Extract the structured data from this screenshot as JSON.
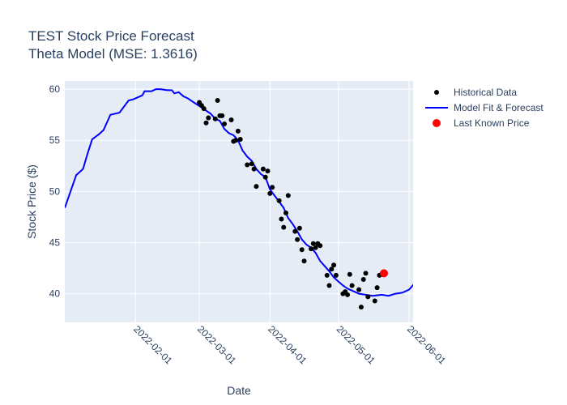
{
  "chart_data": {
    "type": "scatter",
    "title": "TEST Stock Price Forecast",
    "subtitle": "Theta Model (MSE: 1.3616)",
    "xlabel": "Date",
    "ylabel": "Stock Price ($)",
    "xlim": [
      "2022-01-01",
      "2022-06-01"
    ],
    "ylim": [
      37.2,
      60.8
    ],
    "y_ticks": [
      40,
      45,
      50,
      55,
      60
    ],
    "x_ticks": [
      "2022-02-01",
      "2022-03-01",
      "2022-04-01",
      "2022-05-01",
      "2022-06-01"
    ],
    "grid": true,
    "legend_position": "top-right",
    "series": [
      {
        "name": "Historical Data",
        "mode": "markers",
        "color": "#000000",
        "points": [
          [
            "2022-03-01",
            58.7
          ],
          [
            "2022-03-02",
            58.4
          ],
          [
            "2022-03-03",
            58.1
          ],
          [
            "2022-03-04",
            56.7
          ],
          [
            "2022-03-05",
            57.2
          ],
          [
            "2022-03-08",
            57.1
          ],
          [
            "2022-03-09",
            58.9
          ],
          [
            "2022-03-10",
            57.4
          ],
          [
            "2022-03-11",
            57.4
          ],
          [
            "2022-03-12",
            56.6
          ],
          [
            "2022-03-15",
            57.0
          ],
          [
            "2022-03-16",
            54.9
          ],
          [
            "2022-03-17",
            55.0
          ],
          [
            "2022-03-18",
            55.9
          ],
          [
            "2022-03-19",
            55.1
          ],
          [
            "2022-03-22",
            52.6
          ],
          [
            "2022-03-24",
            52.7
          ],
          [
            "2022-03-25",
            52.2
          ],
          [
            "2022-03-26",
            50.5
          ],
          [
            "2022-03-29",
            52.2
          ],
          [
            "2022-03-30",
            51.4
          ],
          [
            "2022-03-31",
            52.0
          ],
          [
            "2022-04-01",
            49.8
          ],
          [
            "2022-04-02",
            50.4
          ],
          [
            "2022-04-05",
            49.1
          ],
          [
            "2022-04-06",
            47.3
          ],
          [
            "2022-04-07",
            46.5
          ],
          [
            "2022-04-08",
            47.9
          ],
          [
            "2022-04-09",
            49.6
          ],
          [
            "2022-04-12",
            46.1
          ],
          [
            "2022-04-13",
            45.3
          ],
          [
            "2022-04-14",
            46.4
          ],
          [
            "2022-04-15",
            44.3
          ],
          [
            "2022-04-16",
            43.2
          ],
          [
            "2022-04-19",
            44.4
          ],
          [
            "2022-04-20",
            44.9
          ],
          [
            "2022-04-21",
            44.5
          ],
          [
            "2022-04-22",
            44.9
          ],
          [
            "2022-04-23",
            44.7
          ],
          [
            "2022-04-26",
            41.8
          ],
          [
            "2022-04-27",
            40.8
          ],
          [
            "2022-04-28",
            42.4
          ],
          [
            "2022-04-29",
            42.8
          ],
          [
            "2022-04-30",
            41.8
          ],
          [
            "2022-05-03",
            40.0
          ],
          [
            "2022-05-04",
            40.2
          ],
          [
            "2022-05-05",
            39.9
          ],
          [
            "2022-05-06",
            41.9
          ],
          [
            "2022-05-07",
            40.8
          ],
          [
            "2022-05-10",
            40.4
          ],
          [
            "2022-05-11",
            38.7
          ],
          [
            "2022-05-12",
            41.4
          ],
          [
            "2022-05-13",
            42.0
          ],
          [
            "2022-05-14",
            39.7
          ],
          [
            "2022-05-17",
            39.3
          ],
          [
            "2022-05-18",
            40.6
          ],
          [
            "2022-05-19",
            41.8
          ],
          [
            "2022-05-20",
            41.9
          ]
        ]
      },
      {
        "name": "Model Fit & Forecast",
        "mode": "lines",
        "color": "#0000ff",
        "points": [
          [
            "2022-01-01",
            48.4
          ],
          [
            "2022-01-04",
            50.3
          ],
          [
            "2022-01-06",
            51.6
          ],
          [
            "2022-01-09",
            52.2
          ],
          [
            "2022-01-11",
            53.7
          ],
          [
            "2022-01-13",
            55.1
          ],
          [
            "2022-01-16",
            55.6
          ],
          [
            "2022-01-18",
            56.0
          ],
          [
            "2022-01-20",
            57.0
          ],
          [
            "2022-01-21",
            57.5
          ],
          [
            "2022-01-25",
            57.7
          ],
          [
            "2022-01-29",
            58.9
          ],
          [
            "2022-01-31",
            59.0
          ],
          [
            "2022-02-02",
            59.2
          ],
          [
            "2022-02-04",
            59.4
          ],
          [
            "2022-02-05",
            59.8
          ],
          [
            "2022-02-08",
            59.8
          ],
          [
            "2022-02-10",
            60.0
          ],
          [
            "2022-02-12",
            60.0
          ],
          [
            "2022-02-15",
            59.9
          ],
          [
            "2022-02-17",
            59.9
          ],
          [
            "2022-02-18",
            59.6
          ],
          [
            "2022-02-20",
            59.7
          ],
          [
            "2022-02-22",
            59.3
          ],
          [
            "2022-02-24",
            59.1
          ],
          [
            "2022-02-26",
            58.8
          ],
          [
            "2022-02-28",
            58.5
          ],
          [
            "2022-03-02",
            58.2
          ],
          [
            "2022-03-04",
            57.9
          ],
          [
            "2022-03-06",
            57.6
          ],
          [
            "2022-03-08",
            57.1
          ],
          [
            "2022-03-10",
            56.9
          ],
          [
            "2022-03-12",
            56.1
          ],
          [
            "2022-03-14",
            55.7
          ],
          [
            "2022-03-16",
            55.5
          ],
          [
            "2022-03-18",
            55.0
          ],
          [
            "2022-03-20",
            54.0
          ],
          [
            "2022-03-22",
            53.4
          ],
          [
            "2022-03-24",
            53.0
          ],
          [
            "2022-03-26",
            52.2
          ],
          [
            "2022-03-28",
            51.7
          ],
          [
            "2022-03-30",
            51.4
          ],
          [
            "2022-04-01",
            50.2
          ],
          [
            "2022-04-03",
            49.6
          ],
          [
            "2022-04-05",
            49.0
          ],
          [
            "2022-04-07",
            48.4
          ],
          [
            "2022-04-09",
            47.4
          ],
          [
            "2022-04-11",
            46.8
          ],
          [
            "2022-04-13",
            46.1
          ],
          [
            "2022-04-15",
            45.3
          ],
          [
            "2022-04-17",
            44.8
          ],
          [
            "2022-04-19",
            44.5
          ],
          [
            "2022-04-21",
            44.0
          ],
          [
            "2022-04-23",
            43.2
          ],
          [
            "2022-04-25",
            42.7
          ],
          [
            "2022-04-27",
            42.2
          ],
          [
            "2022-04-29",
            41.6
          ],
          [
            "2022-05-01",
            41.2
          ],
          [
            "2022-05-03",
            40.8
          ],
          [
            "2022-05-05",
            40.5
          ],
          [
            "2022-05-08",
            40.2
          ],
          [
            "2022-05-10",
            40.0
          ],
          [
            "2022-05-13",
            39.9
          ],
          [
            "2022-05-16",
            39.8
          ],
          [
            "2022-05-20",
            39.9
          ],
          [
            "2022-05-23",
            39.8
          ],
          [
            "2022-05-26",
            40.0
          ],
          [
            "2022-05-29",
            40.1
          ],
          [
            "2022-06-01",
            40.4
          ],
          [
            "2022-06-03",
            40.9
          ]
        ]
      },
      {
        "name": "Last Known Price",
        "mode": "markers",
        "color": "#ff0000",
        "points": [
          [
            "2022-05-21",
            42.0
          ]
        ]
      }
    ]
  }
}
